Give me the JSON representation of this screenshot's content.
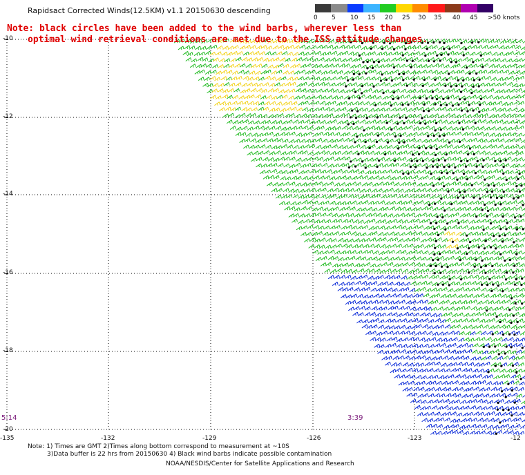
{
  "title": "Rapidsact Corrected Winds(12.5KM) v1.1 20150630 descending",
  "note_lines": [
    "Note: black circles have been added to the wind barbs, wherever less than",
    "optimal wind retrieval conditions are met due to the ISS attitude changes."
  ],
  "colorbar": {
    "labels": [
      "0",
      "5",
      "10",
      "15",
      "20",
      "25",
      "30",
      "35",
      "40",
      "45",
      ">50 knots"
    ],
    "colors": [
      "#3a3a3a",
      "#8a8a8a",
      "#0a3cff",
      "#3cb4ff",
      "#22cc22",
      "#ffd700",
      "#ff8c00",
      "#ff1a1a",
      "#8b3a1a",
      "#b000b0",
      "#330066"
    ]
  },
  "latitude_labels": [
    "-10",
    "-12",
    "-14",
    "-16",
    "-18",
    "-20"
  ],
  "longitude_labels": [
    "-135",
    "-132",
    "-129",
    "-126",
    "-123",
    "-12"
  ],
  "time_labels": [
    "5:14",
    "3:39"
  ],
  "footer_lines": [
    "Note: 1) Times are GMT 2)Times along bottom correspond to measurement at ~10S",
    "3)Data buffer is 22 hrs from 20150630 4) Black wind barbs indicate possible contamination",
    "NOAA/NESDIS/Center for Satellite Applications and Research"
  ],
  "barb_colors": {
    "green": "#22bb22",
    "blue": "#0a2ad8",
    "yellow": "#f2d21a",
    "black": "#000000"
  }
}
